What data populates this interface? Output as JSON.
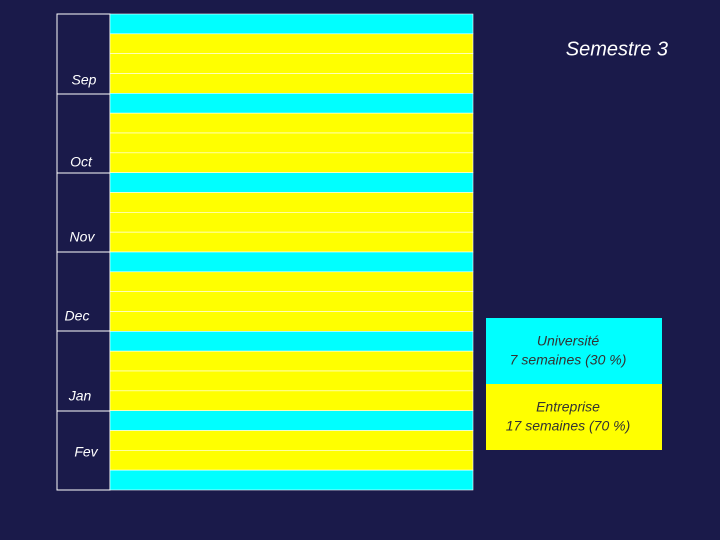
{
  "title": "Semestre 3",
  "months": [
    "Sep",
    "Oct",
    "Nov",
    "Dec",
    "Jan",
    "Fev"
  ],
  "weeks": [
    "#00ffff",
    "#ffff00",
    "#ffff00",
    "#ffff00",
    "#00ffff",
    "#ffff00",
    "#ffff00",
    "#ffff00",
    "#00ffff",
    "#ffff00",
    "#ffff00",
    "#ffff00",
    "#00ffff",
    "#ffff00",
    "#ffff00",
    "#ffff00",
    "#00ffff",
    "#ffff00",
    "#ffff00",
    "#ffff00",
    "#00ffff",
    "#ffff00",
    "#ffff00",
    "#00ffff"
  ],
  "legend": [
    {
      "label": "Université",
      "detail": "7 semaines (30 %)",
      "color": "#00ffff"
    },
    {
      "label": "Entreprise",
      "detail": "17 semaines (70 %)",
      "color": "#ffff00"
    }
  ]
}
